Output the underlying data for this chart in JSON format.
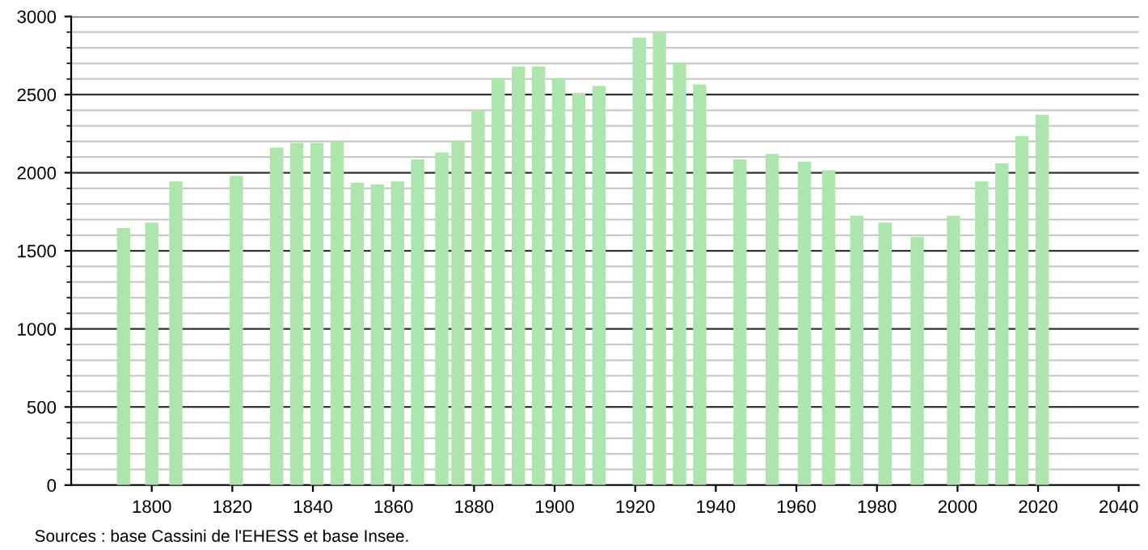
{
  "chart_data": {
    "type": "bar",
    "x": [
      1793,
      1800,
      1806,
      1821,
      1831,
      1836,
      1841,
      1846,
      1851,
      1856,
      1861,
      1866,
      1872,
      1876,
      1881,
      1886,
      1891,
      1896,
      1901,
      1906,
      1911,
      1921,
      1926,
      1931,
      1936,
      1946,
      1954,
      1962,
      1968,
      1975,
      1982,
      1990,
      1999,
      2006,
      2011,
      2016,
      2021
    ],
    "values": [
      1645,
      1680,
      1945,
      1980,
      2160,
      2190,
      2190,
      2200,
      1935,
      1925,
      1945,
      2085,
      2130,
      2200,
      2395,
      2605,
      2680,
      2680,
      2605,
      2505,
      2555,
      2865,
      2895,
      2705,
      2565,
      2085,
      2120,
      2070,
      2015,
      1725,
      1680,
      1590,
      1725,
      1945,
      2060,
      2235,
      2370
    ],
    "color": "#ade5ad",
    "xlim": [
      1780,
      2045
    ],
    "xticks": [
      1800,
      1820,
      1840,
      1860,
      1880,
      1900,
      1920,
      1940,
      1960,
      1980,
      2000,
      2020,
      2040
    ],
    "ylim": [
      0,
      3000
    ],
    "yticks": [
      0,
      500,
      1000,
      1500,
      2000,
      2500,
      3000
    ],
    "grid": "y",
    "annotations": [
      "Sources : base Cassini de l'EHESS et base Insee."
    ]
  }
}
